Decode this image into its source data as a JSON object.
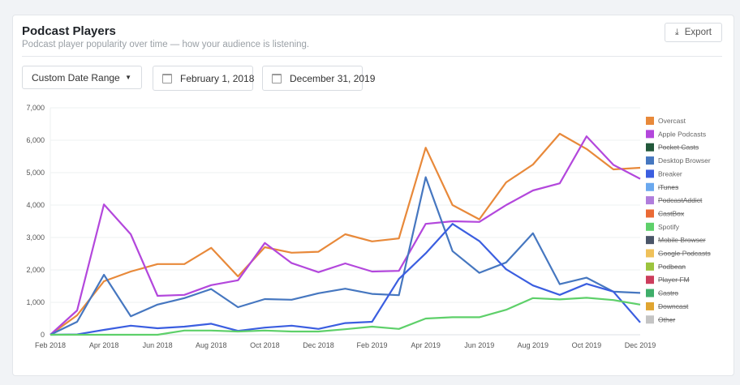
{
  "header": {
    "title": "Podcast Players",
    "subtitle": "Podcast player popularity over time — how your audience is listening.",
    "export_label": "Export"
  },
  "controls": {
    "range_select": "Custom Date Range",
    "start_date": "February 1, 2018",
    "end_date": "December 31, 2019"
  },
  "chart_data": {
    "type": "line",
    "x": [
      "Feb 2018",
      "Mar 2018",
      "Apr 2018",
      "May 2018",
      "Jun 2018",
      "Jul 2018",
      "Aug 2018",
      "Sep 2018",
      "Oct 2018",
      "Nov 2018",
      "Dec 2018",
      "Jan 2019",
      "Feb 2019",
      "Mar 2019",
      "Apr 2019",
      "May 2019",
      "Jun 2019",
      "Jul 2019",
      "Aug 2019",
      "Sep 2019",
      "Oct 2019",
      "Nov 2019",
      "Dec 2019"
    ],
    "x_tick_labels": [
      "Feb 2018",
      "Apr 2018",
      "Jun 2018",
      "Aug 2018",
      "Oct 2018",
      "Dec 2018",
      "Feb 2019",
      "Apr 2019",
      "Jun 2019",
      "Aug 2019",
      "Oct 2019",
      "Dec 2019"
    ],
    "y_tick_labels": [
      "0",
      "1,000",
      "2,000",
      "3,000",
      "4,000",
      "5,000",
      "6,000",
      "7,000"
    ],
    "ylim": [
      0,
      7000
    ],
    "grid": true,
    "legend_position": "right",
    "series": [
      {
        "name": "Overcast",
        "color": "#e8893a",
        "hidden": false,
        "values": [
          0,
          600,
          1650,
          1950,
          2180,
          2180,
          2680,
          1800,
          2700,
          2530,
          2560,
          3100,
          2880,
          2970,
          5770,
          4000,
          3560,
          4700,
          5250,
          6200,
          5730,
          5100,
          5150
        ]
      },
      {
        "name": "Apple Podcasts",
        "color": "#b347dc",
        "hidden": false,
        "values": [
          0,
          750,
          4020,
          3100,
          1200,
          1230,
          1530,
          1680,
          2830,
          2210,
          1930,
          2200,
          1950,
          1970,
          3420,
          3500,
          3480,
          4000,
          4450,
          4670,
          6120,
          5240,
          4810
        ]
      },
      {
        "name": "Pocket Casts",
        "color": "#22583a",
        "hidden": true
      },
      {
        "name": "Desktop Browser",
        "color": "#4677c0",
        "hidden": false,
        "values": [
          0,
          400,
          1850,
          570,
          930,
          1130,
          1410,
          850,
          1100,
          1080,
          1280,
          1420,
          1260,
          1220,
          4860,
          2580,
          1910,
          2230,
          3130,
          1560,
          1760,
          1330,
          1290
        ]
      },
      {
        "name": "Breaker",
        "color": "#3b5ee0",
        "hidden": false,
        "values": [
          0,
          10,
          150,
          280,
          200,
          250,
          340,
          120,
          220,
          280,
          180,
          360,
          400,
          1720,
          2510,
          3420,
          2890,
          2020,
          1520,
          1230,
          1570,
          1330,
          380
        ]
      },
      {
        "name": "iTunes",
        "color": "#6aa8ee",
        "hidden": true
      },
      {
        "name": "PodcastAddict",
        "color": "#b07ddc",
        "hidden": true
      },
      {
        "name": "CastBox",
        "color": "#ea6a35",
        "hidden": true
      },
      {
        "name": "Spotify",
        "color": "#5ed06a",
        "hidden": false,
        "values": [
          0,
          0,
          0,
          0,
          0,
          130,
          130,
          100,
          130,
          100,
          100,
          170,
          250,
          180,
          500,
          540,
          540,
          770,
          1130,
          1090,
          1140,
          1070,
          930
        ]
      },
      {
        "name": "Mobile Browser",
        "color": "#4a5568",
        "hidden": true
      },
      {
        "name": "Google Podcasts",
        "color": "#efc15a",
        "hidden": true
      },
      {
        "name": "Podbean",
        "color": "#9cc43e",
        "hidden": true
      },
      {
        "name": "Player FM",
        "color": "#cc3d5c",
        "hidden": true
      },
      {
        "name": "Castro",
        "color": "#3fae6a",
        "hidden": true
      },
      {
        "name": "Downcast",
        "color": "#e0a531",
        "hidden": true
      },
      {
        "name": "Other",
        "color": "#c4c4c4",
        "hidden": true
      }
    ]
  }
}
